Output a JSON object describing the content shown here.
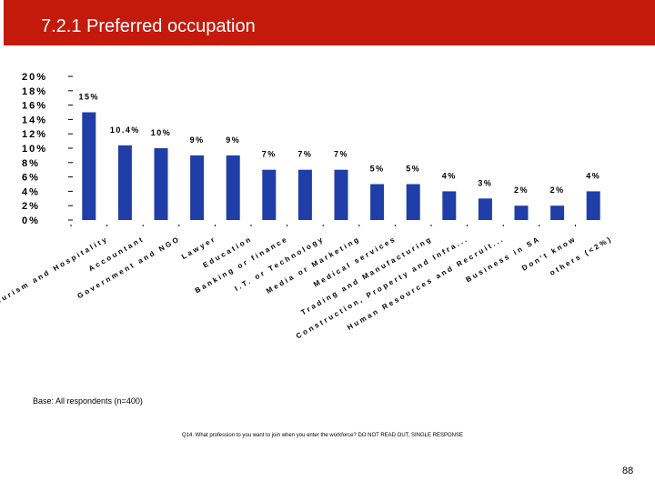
{
  "title": "7.2.1 Preferred occupation",
  "footer": {
    "base": "Base: All respondents (n=400)",
    "question": "Q14. What profession to you want to join when you enter the workforce? DO NOT READ OUT, SINGLE RESPONSE",
    "page_number": "88"
  },
  "colors": {
    "bar": "#1f3ea8",
    "title_bar": "#c41a0c"
  },
  "chart_data": {
    "type": "bar",
    "title": "",
    "xlabel": "",
    "ylabel": "",
    "ylim": [
      0,
      20
    ],
    "y_ticks": [
      "0%",
      "2%",
      "4%",
      "6%",
      "8%",
      "10%",
      "12%",
      "14%",
      "16%",
      "18%",
      "20%"
    ],
    "grid": false,
    "legend": "none",
    "categories": [
      "Tourism and Hospitality",
      "Accountant",
      "Government and NGO",
      "Lawyer",
      "Education",
      "Banking or finance",
      "I.T. or Technology",
      "Media or Marketing",
      "Medical services",
      "Trading and Manufacturing",
      "Construction, Property and Infra...",
      "Human Resources and Recruit...",
      "Business in SA",
      "Don't know",
      "others (<2%)"
    ],
    "values": [
      15,
      10.4,
      10,
      9,
      9,
      7,
      7,
      7,
      5,
      5,
      4,
      3,
      2,
      2,
      4
    ],
    "data_labels": [
      "15%",
      "10.4%",
      "10%",
      "9%",
      "9%",
      "7%",
      "7%",
      "7%",
      "5%",
      "5%",
      "4%",
      "3%",
      "2%",
      "2%",
      "4%"
    ]
  }
}
